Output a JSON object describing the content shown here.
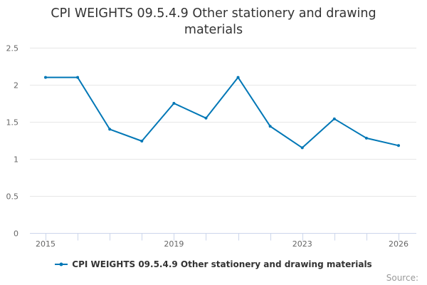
{
  "chart_data": {
    "type": "line",
    "title": "CPI WEIGHTS 09.5.4.9 Other stationery and drawing materials",
    "x": [
      2015,
      2016,
      2017,
      2018,
      2019,
      2020,
      2021,
      2022,
      2023,
      2024,
      2025,
      2026
    ],
    "series": [
      {
        "name": "CPI WEIGHTS 09.5.4.9 Other stationery and drawing materials",
        "values": [
          2.1,
          2.1,
          1.4,
          1.24,
          1.75,
          1.55,
          2.1,
          1.44,
          1.15,
          1.54,
          1.28,
          1.18
        ],
        "color": "#0077B6"
      }
    ],
    "xlim": [
      2015,
      2026
    ],
    "ylim": [
      0,
      2.5
    ],
    "yticks": [
      0,
      0.5,
      1,
      1.5,
      2,
      2.5
    ],
    "xtick_labels": [
      "2015",
      "2019",
      "2023",
      "2026"
    ],
    "xtick_values": [
      2015,
      2019,
      2023,
      2026
    ],
    "grid": true,
    "legend_position": "bottom"
  },
  "credits": "Source:"
}
